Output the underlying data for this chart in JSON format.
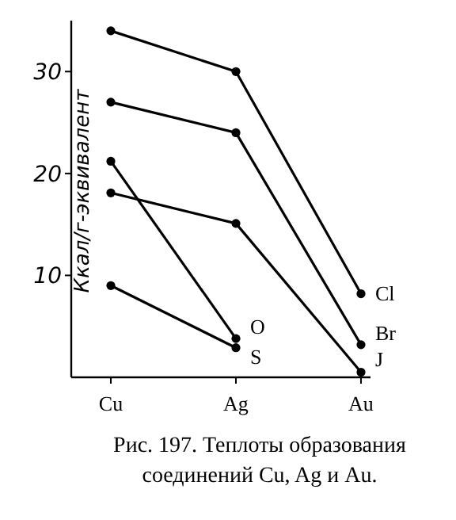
{
  "chart_data": {
    "type": "line",
    "ylabel": "Ккал/г-эквивалент",
    "annotations": [
      "Рис. 197. Теплоты образования соединений Cu, Ag и Au."
    ],
    "categories": [
      "Cu",
      "Ag",
      "Au"
    ],
    "ylim": [
      0,
      35
    ],
    "yticks": [
      10,
      20,
      30
    ],
    "marker": "circle",
    "grid": false,
    "series": [
      {
        "name": "Cl",
        "color": "#000000",
        "values": [
          34,
          30,
          8.2
        ]
      },
      {
        "name": "Br",
        "color": "#000000",
        "values": [
          27,
          24,
          3.2
        ]
      },
      {
        "name": "J",
        "color": "#000000",
        "values": [
          18.1,
          15.1,
          0.5
        ]
      },
      {
        "name": "O",
        "color": "#000000",
        "values": [
          21.2,
          3.8,
          null
        ]
      },
      {
        "name": "S",
        "color": "#000000",
        "values": [
          9,
          2.9,
          null
        ]
      }
    ]
  }
}
